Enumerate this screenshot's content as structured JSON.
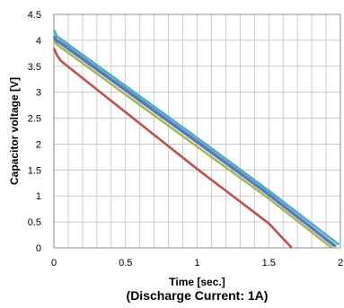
{
  "chart_data": {
    "type": "line",
    "xlabel": "Time [sec.]",
    "ylabel": "Capacitor voltage [V]",
    "caption": "(Discharge Current: 1A)",
    "xlim": [
      0,
      2
    ],
    "ylim": [
      0,
      4.5
    ],
    "x_ticks": [
      "0",
      "0.5",
      "1",
      "1.5",
      "2"
    ],
    "y_ticks": [
      "0",
      "0.5",
      "1",
      "1.5",
      "2",
      "2.5",
      "3",
      "3.5",
      "4",
      "4.5"
    ],
    "grid": true,
    "legend": "none",
    "series": [
      {
        "color": "#c0504d",
        "x": [
          0,
          0.02,
          0.05,
          1.0,
          1.5,
          1.66
        ],
        "y": [
          3.85,
          3.72,
          3.6,
          1.52,
          0.47,
          0
        ]
      },
      {
        "color": "#9bbb59",
        "x": [
          0,
          0.02,
          0.05,
          1.0,
          1.5,
          1.94
        ],
        "y": [
          4.0,
          3.92,
          3.86,
          1.95,
          0.95,
          0
        ]
      },
      {
        "color": "#7b5fa8",
        "x": [
          0,
          0.02,
          0.05,
          1.0,
          1.5,
          1.96
        ],
        "y": [
          4.05,
          3.98,
          3.93,
          2.03,
          1.02,
          0.03
        ]
      },
      {
        "color": "#4f81bd",
        "x": [
          0,
          0.02,
          0.05,
          1.0,
          1.5,
          1.97
        ],
        "y": [
          4.08,
          4.01,
          3.96,
          2.06,
          1.04,
          0.03
        ]
      },
      {
        "color": "#4bacc6",
        "x": [
          0,
          0.02,
          0.05,
          1.0,
          1.5,
          1.99
        ],
        "y": [
          4.2,
          4.08,
          4.02,
          2.12,
          1.1,
          0.06
        ]
      }
    ]
  }
}
